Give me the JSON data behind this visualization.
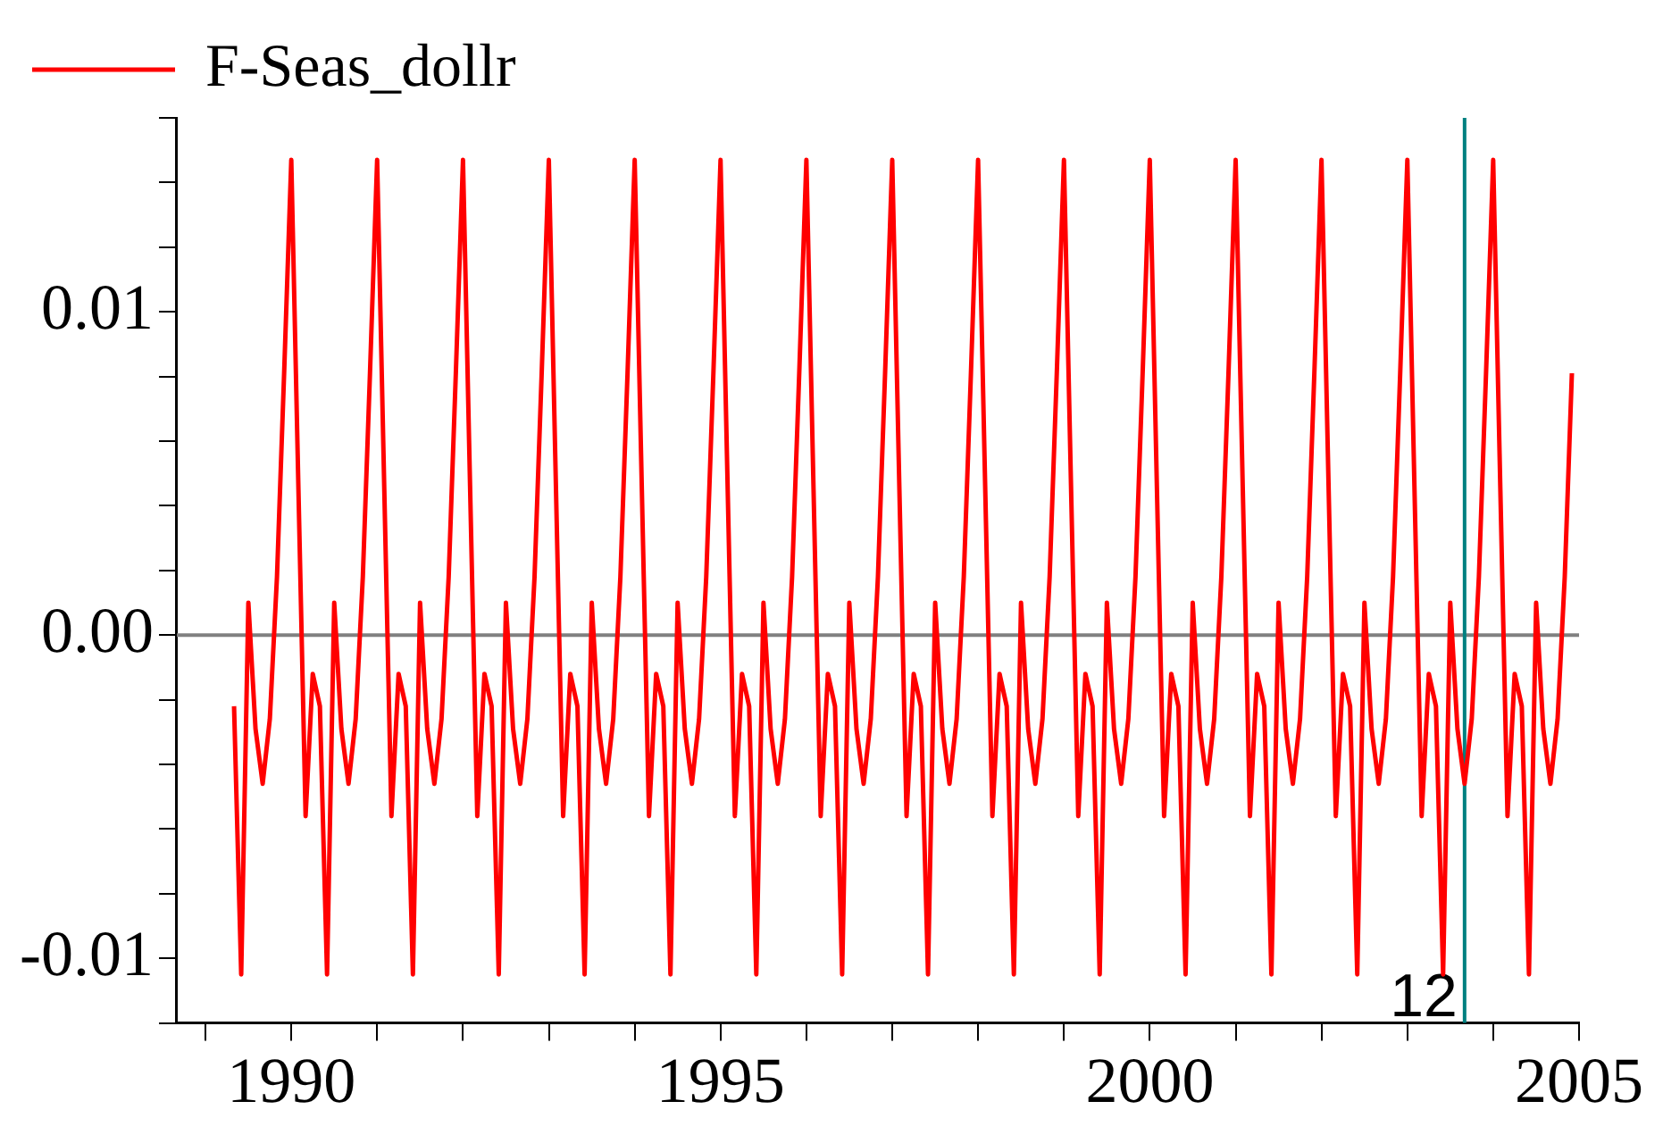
{
  "chart_data": {
    "type": "line",
    "x": [
      "1989-05",
      "1989-06",
      "1989-07",
      "1989-08",
      "1989-09",
      "1989-10",
      "1989-11",
      "1989-12",
      "1990-01",
      "1990-02",
      "1990-03",
      "1990-04",
      "1990-05",
      "1990-06",
      "1990-07",
      "1990-08",
      "1990-09",
      "1990-10",
      "1990-11",
      "1990-12",
      "1991-01",
      "1991-02",
      "1991-03",
      "1991-04",
      "1991-05",
      "1991-06",
      "1991-07",
      "1991-08",
      "1991-09",
      "1991-10",
      "1991-11",
      "1991-12",
      "1992-01",
      "1992-02",
      "1992-03",
      "1992-04",
      "1992-05",
      "1992-06",
      "1992-07",
      "1992-08",
      "1992-09",
      "1992-10",
      "1992-11",
      "1992-12",
      "1993-01",
      "1993-02",
      "1993-03",
      "1993-04",
      "1993-05",
      "1993-06",
      "1993-07",
      "1993-08",
      "1993-09",
      "1993-10",
      "1993-11",
      "1993-12",
      "1994-01",
      "1994-02",
      "1994-03",
      "1994-04",
      "1994-05",
      "1994-06",
      "1994-07",
      "1994-08",
      "1994-09",
      "1994-10",
      "1994-11",
      "1994-12",
      "1995-01",
      "1995-02",
      "1995-03",
      "1995-04",
      "1995-05",
      "1995-06",
      "1995-07",
      "1995-08",
      "1995-09",
      "1995-10",
      "1995-11",
      "1995-12",
      "1996-01",
      "1996-02",
      "1996-03",
      "1996-04",
      "1996-05",
      "1996-06",
      "1996-07",
      "1996-08",
      "1996-09",
      "1996-10",
      "1996-11",
      "1996-12",
      "1997-01",
      "1997-02",
      "1997-03",
      "1997-04",
      "1997-05",
      "1997-06",
      "1997-07",
      "1997-08",
      "1997-09",
      "1997-10",
      "1997-11",
      "1997-12",
      "1998-01",
      "1998-02",
      "1998-03",
      "1998-04",
      "1998-05",
      "1998-06",
      "1998-07",
      "1998-08",
      "1998-09",
      "1998-10",
      "1998-11",
      "1998-12",
      "1999-01",
      "1999-02",
      "1999-03",
      "1999-04",
      "1999-05",
      "1999-06",
      "1999-07",
      "1999-08",
      "1999-09",
      "1999-10",
      "1999-11",
      "1999-12",
      "2000-01",
      "2000-02",
      "2000-03",
      "2000-04",
      "2000-05",
      "2000-06",
      "2000-07",
      "2000-08",
      "2000-09",
      "2000-10",
      "2000-11",
      "2000-12",
      "2001-01",
      "2001-02",
      "2001-03",
      "2001-04",
      "2001-05",
      "2001-06",
      "2001-07",
      "2001-08",
      "2001-09",
      "2001-10",
      "2001-11",
      "2001-12",
      "2002-01",
      "2002-02",
      "2002-03",
      "2002-04",
      "2002-05",
      "2002-06",
      "2002-07",
      "2002-08",
      "2002-09",
      "2002-10",
      "2002-11",
      "2002-12",
      "2003-01",
      "2003-02",
      "2003-03",
      "2003-04",
      "2003-05",
      "2003-06",
      "2003-07",
      "2003-08",
      "2003-09",
      "2003-10",
      "2003-11",
      "2003-12",
      "2004-01",
      "2004-02",
      "2004-03",
      "2004-04",
      "2004-05",
      "2004-06",
      "2004-07",
      "2004-08",
      "2004-09",
      "2004-10",
      "2004-11",
      "2004-12"
    ],
    "series": [
      {
        "name": "F-Seas_dollr",
        "color": "#ff0000",
        "values": [
          -0.0022,
          -0.0105,
          0.001,
          -0.0029,
          -0.0046,
          -0.0026,
          0.0018,
          0.0081,
          0.0147,
          0.0045,
          -0.0056,
          -0.0012,
          -0.0022,
          -0.0105,
          0.001,
          -0.0029,
          -0.0046,
          -0.0026,
          0.0018,
          0.0081,
          0.0147,
          0.0045,
          -0.0056,
          -0.0012,
          -0.0022,
          -0.0105,
          0.001,
          -0.0029,
          -0.0046,
          -0.0026,
          0.0018,
          0.0081,
          0.0147,
          0.0045,
          -0.0056,
          -0.0012,
          -0.0022,
          -0.0105,
          0.001,
          -0.0029,
          -0.0046,
          -0.0026,
          0.0018,
          0.0081,
          0.0147,
          0.0045,
          -0.0056,
          -0.0012,
          -0.0022,
          -0.0105,
          0.001,
          -0.0029,
          -0.0046,
          -0.0026,
          0.0018,
          0.0081,
          0.0147,
          0.0045,
          -0.0056,
          -0.0012,
          -0.0022,
          -0.0105,
          0.001,
          -0.0029,
          -0.0046,
          -0.0026,
          0.0018,
          0.0081,
          0.0147,
          0.0045,
          -0.0056,
          -0.0012,
          -0.0022,
          -0.0105,
          0.001,
          -0.0029,
          -0.0046,
          -0.0026,
          0.0018,
          0.0081,
          0.0147,
          0.0045,
          -0.0056,
          -0.0012,
          -0.0022,
          -0.0105,
          0.001,
          -0.0029,
          -0.0046,
          -0.0026,
          0.0018,
          0.0081,
          0.0147,
          0.0045,
          -0.0056,
          -0.0012,
          -0.0022,
          -0.0105,
          0.001,
          -0.0029,
          -0.0046,
          -0.0026,
          0.0018,
          0.0081,
          0.0147,
          0.0045,
          -0.0056,
          -0.0012,
          -0.0022,
          -0.0105,
          0.001,
          -0.0029,
          -0.0046,
          -0.0026,
          0.0018,
          0.0081,
          0.0147,
          0.0045,
          -0.0056,
          -0.0012,
          -0.0022,
          -0.0105,
          0.001,
          -0.0029,
          -0.0046,
          -0.0026,
          0.0018,
          0.0081,
          0.0147,
          0.0045,
          -0.0056,
          -0.0012,
          -0.0022,
          -0.0105,
          0.001,
          -0.0029,
          -0.0046,
          -0.0026,
          0.0018,
          0.0081,
          0.0147,
          0.0045,
          -0.0056,
          -0.0012,
          -0.0022,
          -0.0105,
          0.001,
          -0.0029,
          -0.0046,
          -0.0026,
          0.0018,
          0.0081,
          0.0147,
          0.0045,
          -0.0056,
          -0.0012,
          -0.0022,
          -0.0105,
          0.001,
          -0.0029,
          -0.0046,
          -0.0026,
          0.0018,
          0.0081,
          0.0147,
          0.0045,
          -0.0056,
          -0.0012,
          -0.0022,
          -0.0105,
          0.001,
          -0.0029,
          -0.0046,
          -0.0026,
          0.0018,
          0.0081,
          0.0147,
          0.0045,
          -0.0056,
          -0.0012,
          -0.0022,
          -0.0105,
          0.001,
          -0.0029,
          -0.0046,
          -0.0026,
          0.0018,
          0.0081
        ]
      }
    ],
    "xlim": [
      "1988-09",
      "2005"
    ],
    "xticks": [
      {
        "value": "1989",
        "label": null
      },
      "1990",
      {
        "value": "1991",
        "label": null
      },
      {
        "value": "1992",
        "label": null
      },
      {
        "value": "1993",
        "label": null
      },
      {
        "value": "1994",
        "label": null
      },
      "1995",
      {
        "value": "1996",
        "label": null
      },
      {
        "value": "1997",
        "label": null
      },
      {
        "value": "1998",
        "label": null
      },
      {
        "value": "1999",
        "label": null
      },
      "2000",
      {
        "value": "2001",
        "label": null
      },
      {
        "value": "2002",
        "label": null
      },
      {
        "value": "2003",
        "label": null
      },
      {
        "value": "2004",
        "label": null
      },
      "2005"
    ],
    "ylim": [
      -0.012,
      0.016
    ],
    "yticks": [
      {
        "value": -0.012,
        "label": null
      },
      {
        "value": -0.01,
        "label": "-0.01"
      },
      {
        "value": -0.008,
        "label": null
      },
      {
        "value": -0.006,
        "label": null
      },
      {
        "value": -0.004,
        "label": null
      },
      {
        "value": -0.002,
        "label": null
      },
      {
        "value": 0,
        "label": "0.00"
      },
      {
        "value": 0.002,
        "label": null
      },
      {
        "value": 0.004,
        "label": null
      },
      {
        "value": 0.006,
        "label": null
      },
      {
        "value": 0.008,
        "label": null
      },
      {
        "value": 0.01,
        "label": "0.01"
      },
      {
        "value": 0.012,
        "label": null
      },
      {
        "value": 0.014,
        "label": null
      },
      {
        "value": 0.016,
        "label": null
      }
    ],
    "ref_lines": [
      {
        "axis": "y",
        "value": 0,
        "color": "#808080"
      },
      {
        "axis": "x",
        "value": "2003-09",
        "label": "12",
        "color": "#008080"
      }
    ],
    "legend": "top left",
    "grid": false,
    "marker": "none",
    "line_style": "solid"
  }
}
